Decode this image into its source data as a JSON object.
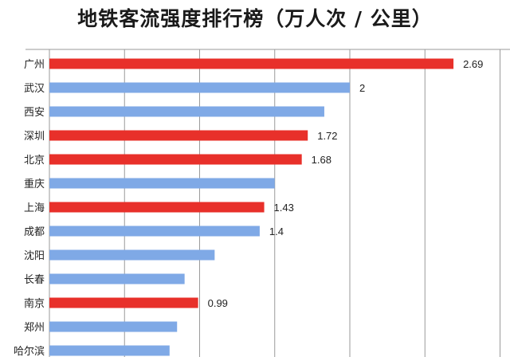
{
  "chart_data": {
    "type": "bar",
    "orientation": "horizontal",
    "title": "地铁客流强度排行榜（万人次 / 公里）",
    "categories": [
      "广州",
      "武汉",
      "西安",
      "深圳",
      "北京",
      "重庆",
      "上海",
      "成都",
      "沈阳",
      "长春",
      "南京",
      "郑州",
      "哈尔滨"
    ],
    "values": [
      2.69,
      2.0,
      1.83,
      1.72,
      1.68,
      1.5,
      1.43,
      1.4,
      1.1,
      0.9,
      0.99,
      0.85,
      0.8
    ],
    "data_labels": [
      "2.69",
      "2",
      "",
      "1.72",
      "1.68",
      "",
      "1.43",
      "1.4",
      "",
      "",
      "0.99",
      "",
      ""
    ],
    "highlight": [
      true,
      false,
      false,
      true,
      true,
      false,
      true,
      false,
      false,
      false,
      true,
      false,
      false
    ],
    "xlim": [
      0,
      3.2
    ],
    "gridlines": [
      0.5,
      1.0,
      1.5,
      2.0,
      2.5,
      3.0
    ],
    "grid": true,
    "colors": {
      "highlight": "#e8302a",
      "normal": "#7fa9e6",
      "grid": "#9a9a9a"
    }
  }
}
